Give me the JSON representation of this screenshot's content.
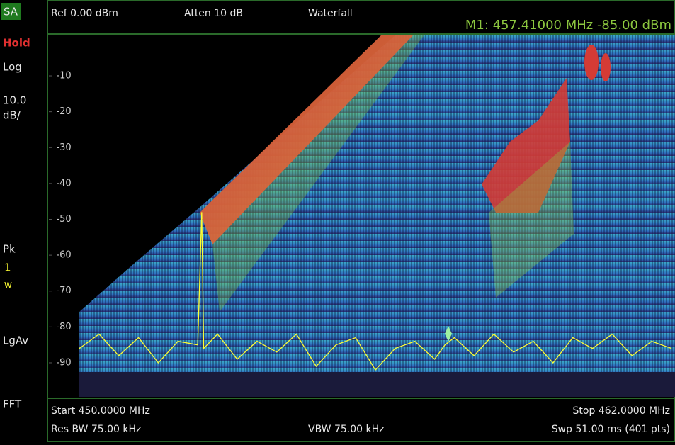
{
  "sidebar": {
    "mode": "SA",
    "status": "Hold",
    "scale_type": "Log",
    "scale_value": "10.0",
    "scale_unit": "dB/",
    "detector": "Pk",
    "trace_number": "1",
    "trace_mode": "W",
    "average": "LgAv",
    "sweep_type": "FFT"
  },
  "header": {
    "ref": "Ref 0.00 dBm",
    "atten": "Atten 10 dB",
    "view": "Waterfall",
    "marker": "M1:  457.41000 MHz -85.00 dBm"
  },
  "footer": {
    "start": "Start 450.0000 MHz",
    "stop": "Stop 462.0000 MHz",
    "rbw": "Res BW 75.00 kHz",
    "vbw": "VBW 75.00 kHz",
    "sweep": "Swp 51.00 ms (401 pts)"
  },
  "chart_data": {
    "type": "line",
    "color": "#ffff33",
    "x": [
      450.0,
      450.4,
      450.8,
      451.2,
      451.6,
      452.0,
      452.4,
      452.48,
      452.52,
      452.8,
      453.2,
      453.6,
      454.0,
      454.4,
      454.8,
      455.2,
      455.6,
      456.0,
      456.4,
      456.8,
      457.2,
      457.41,
      457.6,
      458.0,
      458.4,
      458.8,
      459.2,
      459.6,
      460.0,
      460.4,
      460.8,
      461.2,
      461.6,
      462.0
    ],
    "values": [
      -86,
      -82,
      -88,
      -83,
      -90,
      -84,
      -85,
      -48,
      -86,
      -82,
      -89,
      -84,
      -87,
      -82,
      -91,
      -85,
      -83,
      -92,
      -86,
      -84,
      -89,
      -85,
      -83,
      -88,
      -82,
      -87,
      -84,
      -90,
      -83,
      -86,
      -82,
      -88,
      -84,
      -86
    ],
    "xlim": [
      450,
      462
    ],
    "ylim": [
      -100,
      0
    ],
    "yticks": [
      -10,
      -20,
      -30,
      -40,
      -50,
      -60,
      -70,
      -80,
      -90
    ]
  }
}
